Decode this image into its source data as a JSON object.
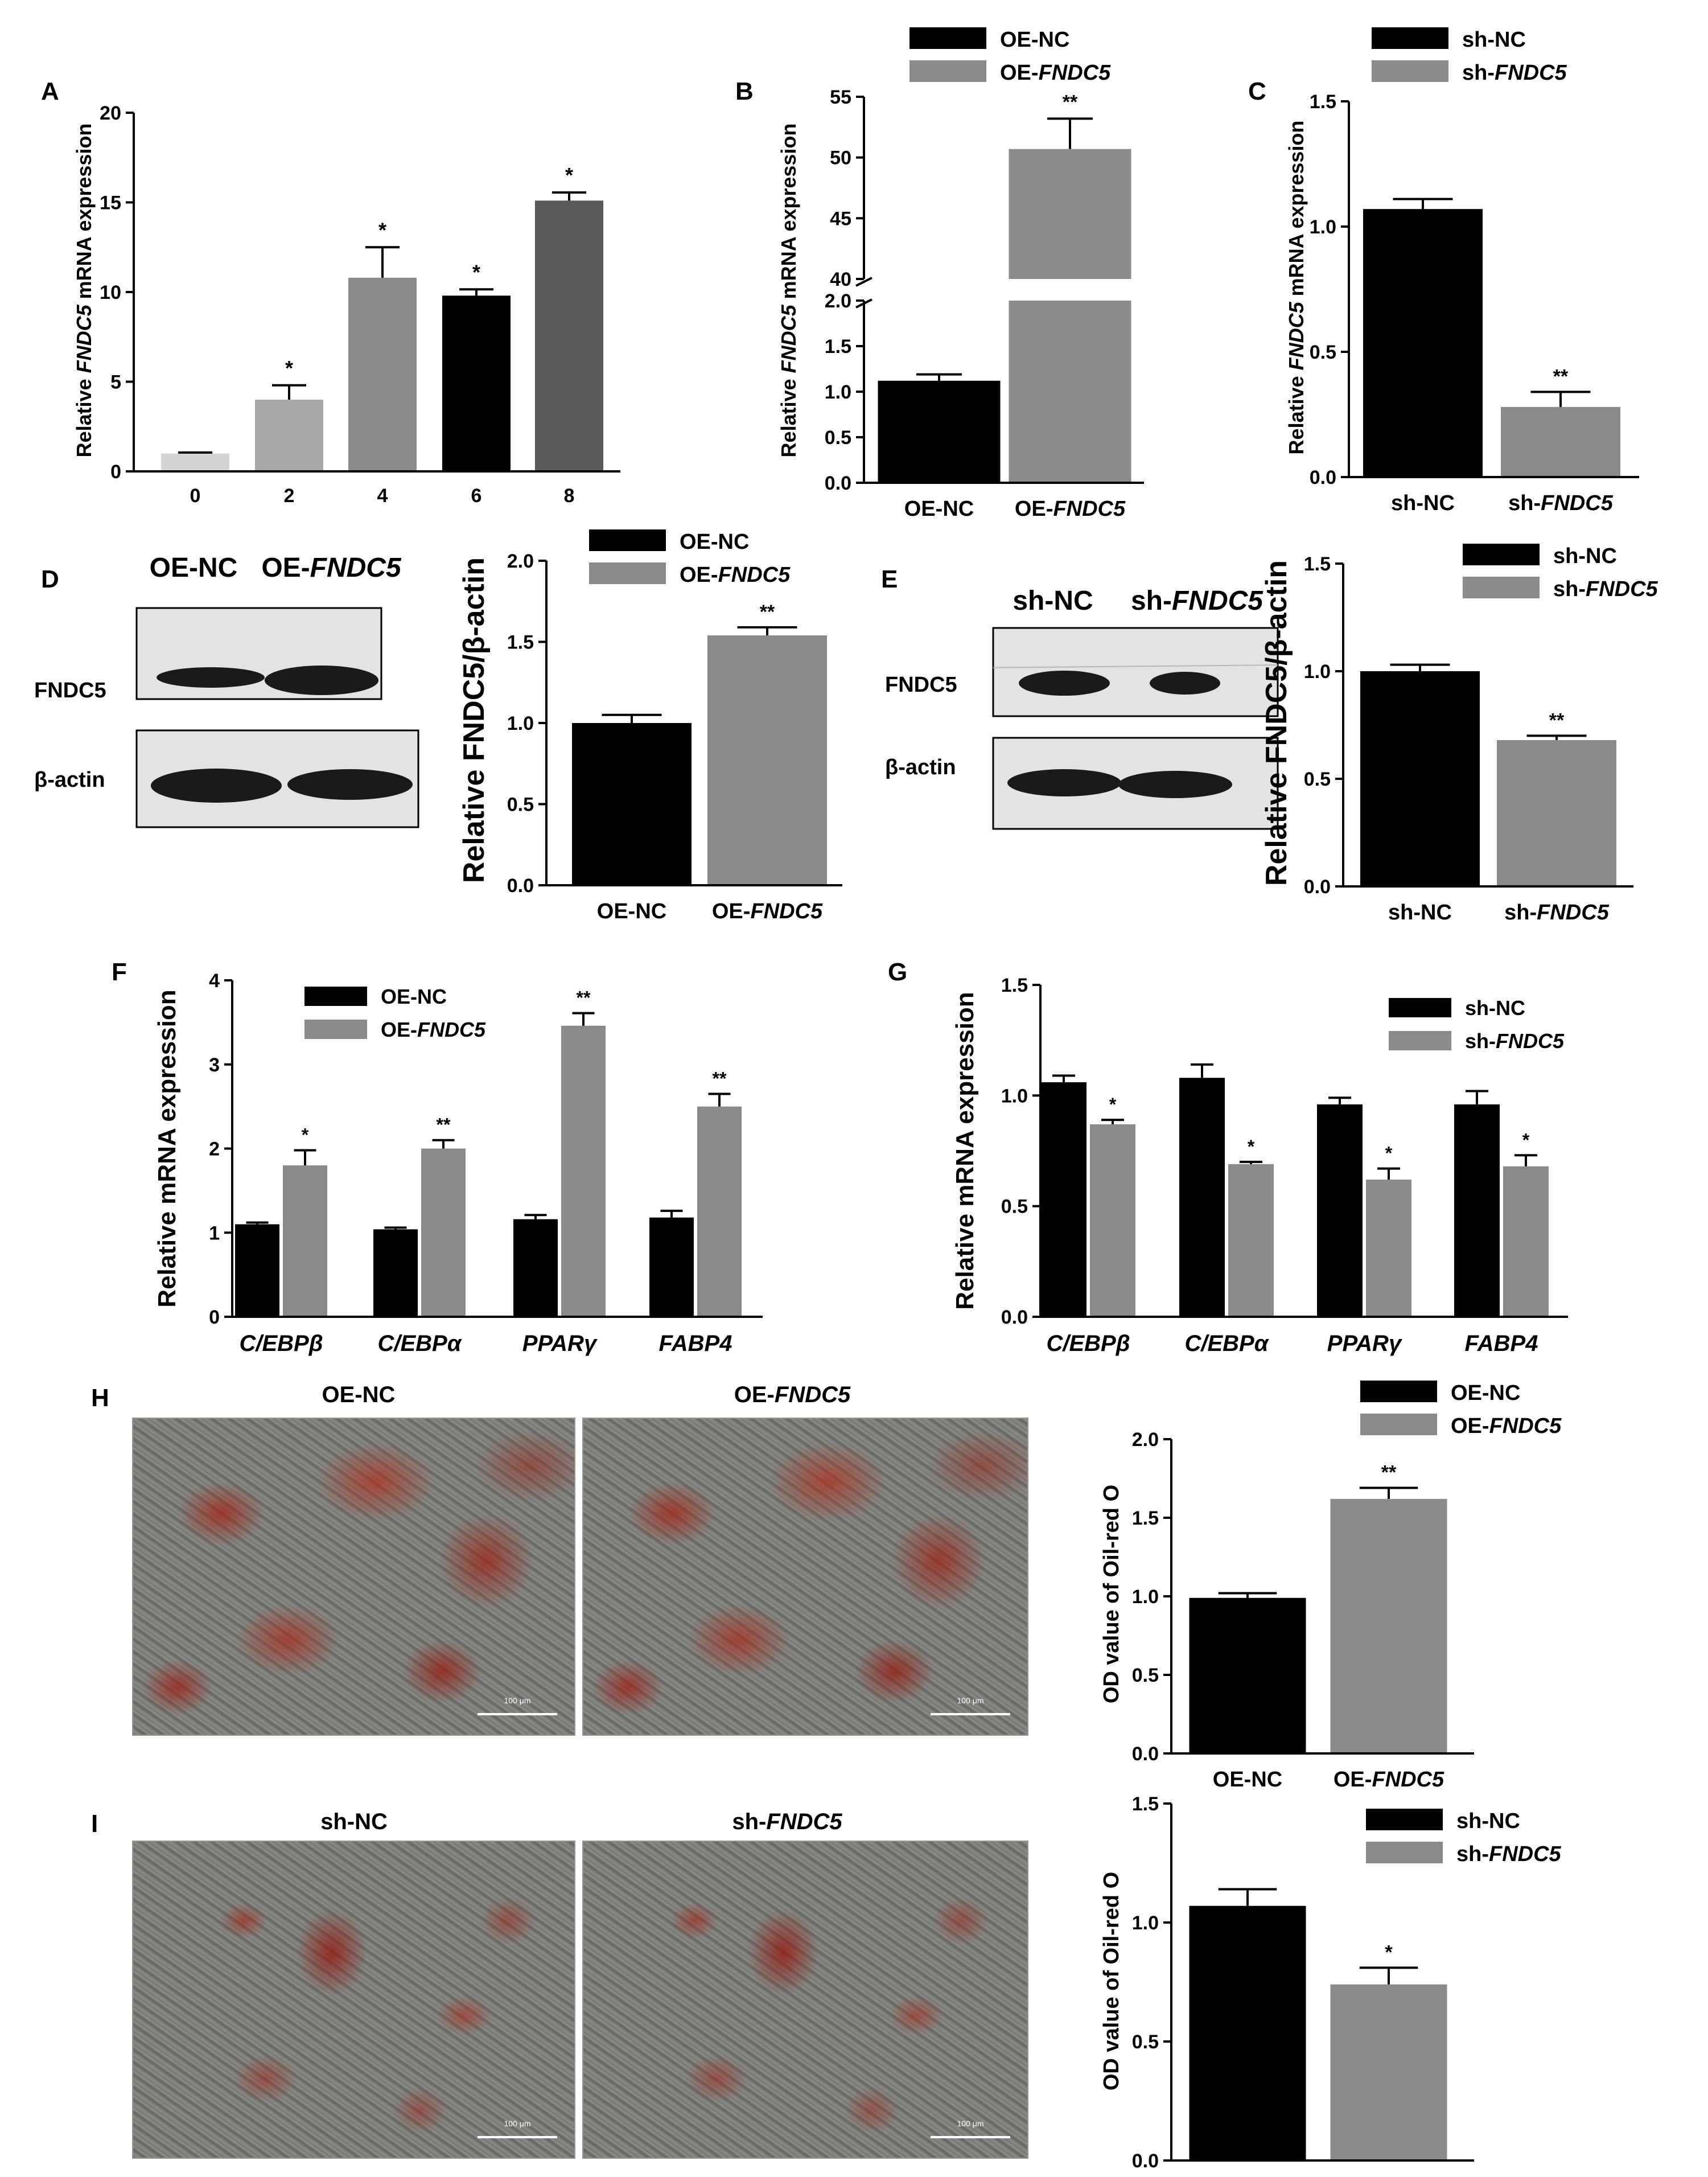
{
  "colors": {
    "black": "#000000",
    "dark_gray": "#5b5b5b",
    "gray": "#8a8a8a",
    "light_gray": "#a9a9ac",
    "pale_gray": "#d4d4d4",
    "blot_bg": "#e3e3e3",
    "band": "#1a1a1a"
  },
  "chart_data": [
    {
      "panel": "A",
      "type": "bar",
      "title": "",
      "xlabel": "",
      "ylabel_prefix": "Relative ",
      "ylabel_gene": "FNDC5",
      "ylabel_suffix": " mRNA expression",
      "categories": [
        "0",
        "2",
        "4",
        "6",
        "8"
      ],
      "values": [
        1.0,
        4.0,
        10.8,
        9.8,
        15.1
      ],
      "errors": [
        0.05,
        0.8,
        1.7,
        0.35,
        0.45
      ],
      "significance": [
        "",
        "*",
        "*",
        "*",
        "*"
      ],
      "ylim": [
        0,
        20
      ],
      "yticks": [
        "0",
        "5",
        "10",
        "15",
        "20"
      ]
    },
    {
      "panel": "B",
      "type": "bar",
      "broken_axis": true,
      "ylabel_prefix": "Relative ",
      "ylabel_gene": "FNDC5",
      "ylabel_suffix": " mRNA expression",
      "categories": [
        "OE-NC",
        "OE-FNDC5"
      ],
      "values": [
        1.12,
        50.7
      ],
      "errors": [
        0.07,
        2.5
      ],
      "significance": [
        "",
        "**"
      ],
      "lower_range": [
        0,
        2.0
      ],
      "upper_range": [
        40,
        55
      ],
      "lower_ticks": [
        "0.0",
        "0.5",
        "1.0",
        "1.5",
        "2.0"
      ],
      "upper_ticks": [
        "40",
        "45",
        "50",
        "55"
      ],
      "legend": [
        "OE-NC",
        "OE-FNDC5"
      ]
    },
    {
      "panel": "C",
      "type": "bar",
      "ylabel_prefix": "Relative ",
      "ylabel_gene": "FNDC5",
      "ylabel_suffix": " mRNA expression",
      "categories": [
        "sh-NC",
        "sh-FNDC5"
      ],
      "values": [
        1.07,
        0.28
      ],
      "errors": [
        0.04,
        0.06
      ],
      "significance": [
        "",
        "**"
      ],
      "ylim": [
        0,
        1.5
      ],
      "yticks": [
        "0.0",
        "0.5",
        "1.0",
        "1.5"
      ],
      "legend": [
        "sh-NC",
        "sh-FNDC5"
      ]
    },
    {
      "panel": "D",
      "type": "bar",
      "ylabel": "Relative FNDC5/β-actin",
      "categories": [
        "OE-NC",
        "OE-FNDC5"
      ],
      "values": [
        1.0,
        1.54
      ],
      "errors": [
        0.05,
        0.05
      ],
      "significance": [
        "",
        "**"
      ],
      "ylim": [
        0,
        2.0
      ],
      "yticks": [
        "0.0",
        "0.5",
        "1.0",
        "1.5",
        "2.0"
      ],
      "legend": [
        "OE-NC",
        "OE-FNDC5"
      ]
    },
    {
      "panel": "E",
      "type": "bar",
      "ylabel": "Relative FNDC5/β-actin",
      "categories": [
        "sh-NC",
        "sh-FNDC5"
      ],
      "values": [
        1.0,
        0.68
      ],
      "errors": [
        0.03,
        0.02
      ],
      "significance": [
        "",
        "**"
      ],
      "ylim": [
        0,
        1.5
      ],
      "yticks": [
        "0.0",
        "0.5",
        "1.0",
        "1.5"
      ],
      "legend": [
        "sh-NC",
        "sh-FNDC5"
      ]
    },
    {
      "panel": "F",
      "type": "grouped-bar",
      "ylabel": "Relative mRNA expression",
      "categories": [
        "C/EBPβ",
        "C/EBPα",
        "PPARγ",
        "FABP4"
      ],
      "series": [
        {
          "name": "OE-NC",
          "values": [
            1.1,
            1.04,
            1.16,
            1.18
          ],
          "errors": [
            0.02,
            0.02,
            0.05,
            0.08
          ],
          "significance": [
            "",
            "",
            "",
            ""
          ]
        },
        {
          "name": "OE-FNDC5",
          "values": [
            1.8,
            2.0,
            3.46,
            2.5
          ],
          "errors": [
            0.18,
            0.1,
            0.15,
            0.15
          ],
          "significance": [
            "*",
            "**",
            "**",
            "**"
          ]
        }
      ],
      "ylim": [
        0,
        4
      ],
      "yticks": [
        "0",
        "1",
        "2",
        "3",
        "4"
      ]
    },
    {
      "panel": "G",
      "type": "grouped-bar",
      "ylabel": "Relative mRNA expression",
      "categories": [
        "C/EBPβ",
        "C/EBPα",
        "PPARγ",
        "FABP4"
      ],
      "series": [
        {
          "name": "sh-NC",
          "values": [
            1.06,
            1.08,
            0.96,
            0.96
          ],
          "errors": [
            0.03,
            0.06,
            0.03,
            0.06
          ],
          "significance": [
            "",
            "",
            "",
            ""
          ]
        },
        {
          "name": "sh-FNDC5",
          "values": [
            0.87,
            0.69,
            0.62,
            0.68
          ],
          "errors": [
            0.02,
            0.01,
            0.05,
            0.05
          ],
          "significance": [
            "*",
            "*",
            "*",
            "*"
          ]
        }
      ],
      "ylim": [
        0,
        1.5
      ],
      "yticks": [
        "0.0",
        "0.5",
        "1.0",
        "1.5"
      ]
    },
    {
      "panel": "H",
      "type": "bar",
      "ylabel": "OD value of Oil-red O",
      "categories": [
        "OE-NC",
        "OE-FNDC5"
      ],
      "values": [
        0.99,
        1.62
      ],
      "errors": [
        0.03,
        0.07
      ],
      "significance": [
        "",
        "**"
      ],
      "ylim": [
        0,
        2.0
      ],
      "yticks": [
        "0.0",
        "0.5",
        "1.0",
        "1.5",
        "2.0"
      ],
      "legend": [
        "OE-NC",
        "OE-FNDC5"
      ]
    },
    {
      "panel": "I",
      "type": "bar",
      "ylabel": "OD value of Oil-red O",
      "categories": [
        "sh-NC",
        "sh-FNDC5"
      ],
      "values": [
        1.07,
        0.74
      ],
      "errors": [
        0.07,
        0.07
      ],
      "significance": [
        "",
        "*"
      ],
      "ylim": [
        0,
        1.5
      ],
      "yticks": [
        "0.0",
        "0.5",
        "1.0",
        "1.5"
      ],
      "legend": [
        "sh-NC",
        "sh-FNDC5"
      ]
    }
  ],
  "blots": {
    "D": {
      "lanes": [
        "OE-NC",
        "OE-FNDC5"
      ],
      "rows": [
        "FNDC5",
        "β-actin"
      ]
    },
    "E": {
      "lanes": [
        "sh-NC",
        "sh-FNDC5"
      ],
      "rows": [
        "FNDC5",
        "β-actin"
      ]
    }
  },
  "micrographs": {
    "H": [
      "OE-NC",
      "OE-FNDC5"
    ],
    "I": [
      "sh-NC",
      "sh-FNDC5"
    ],
    "scale_label": "100 μm"
  }
}
